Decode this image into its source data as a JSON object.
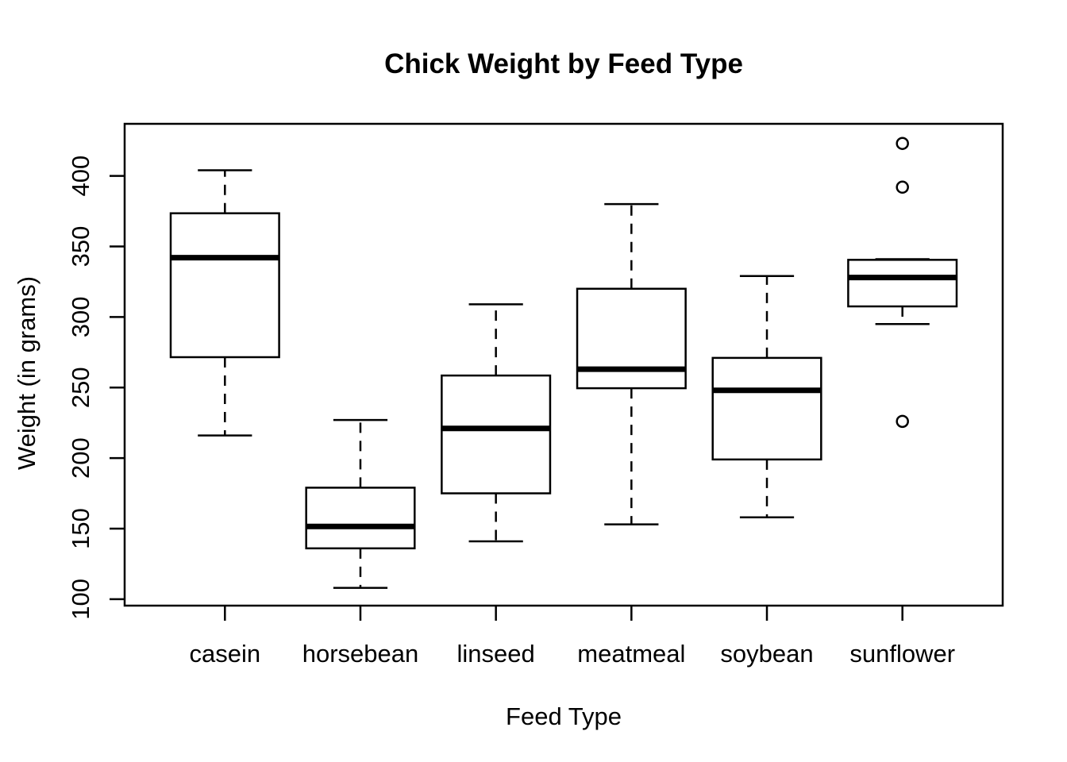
{
  "chart_data": {
    "type": "boxplot",
    "title": "Chick Weight by Feed Type",
    "xlabel": "Feed Type",
    "ylabel": "Weight (in grams)",
    "categories": [
      "casein",
      "horsebean",
      "linseed",
      "meatmeal",
      "soybean",
      "sunflower"
    ],
    "yticks": [
      100,
      150,
      200,
      250,
      300,
      350,
      400
    ],
    "ylim": [
      95.4,
      436.9
    ],
    "xlim": [
      0.26,
      6.74
    ],
    "grid": false,
    "legend": null,
    "colors": {
      "stroke": "#000000",
      "box_fill": "#ffffff",
      "background": "#ffffff"
    },
    "series": [
      {
        "name": "casein",
        "whisker_low": 216,
        "q1": 271.5,
        "median": 342,
        "q3": 373.5,
        "whisker_high": 404,
        "outliers": []
      },
      {
        "name": "horsebean",
        "whisker_low": 108,
        "q1": 136,
        "median": 151.5,
        "q3": 179,
        "whisker_high": 227,
        "outliers": []
      },
      {
        "name": "linseed",
        "whisker_low": 141,
        "q1": 175,
        "median": 221,
        "q3": 258.5,
        "whisker_high": 309,
        "outliers": []
      },
      {
        "name": "meatmeal",
        "whisker_low": 153,
        "q1": 249.5,
        "median": 263,
        "q3": 320,
        "whisker_high": 380,
        "outliers": []
      },
      {
        "name": "soybean",
        "whisker_low": 158,
        "q1": 199,
        "median": 248,
        "q3": 271,
        "whisker_high": 329,
        "outliers": []
      },
      {
        "name": "sunflower",
        "whisker_low": 295,
        "q1": 307.5,
        "median": 328,
        "q3": 340.5,
        "whisker_high": 341,
        "outliers": [
          226,
          392,
          423
        ]
      }
    ]
  }
}
